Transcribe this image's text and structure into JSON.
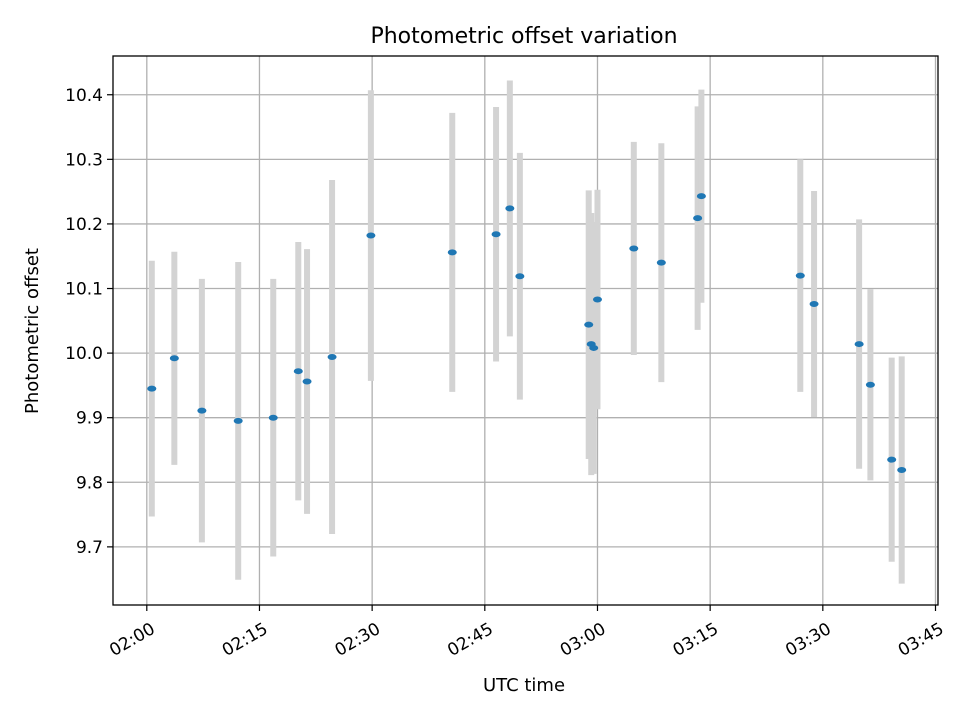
{
  "chart_data": {
    "type": "scatter",
    "title": "Photometric offset variation",
    "xlabel": "UTC time",
    "ylabel": "Photometric offset",
    "x_ticks": [
      "02:00",
      "02:15",
      "02:30",
      "02:45",
      "03:00",
      "03:15",
      "03:30",
      "03:45"
    ],
    "y_ticks": [
      "9.7",
      "9.8",
      "9.9",
      "10.0",
      "10.1",
      "10.2",
      "10.3",
      "10.4"
    ],
    "xlim": [
      "01:55:30",
      "03:45:20"
    ],
    "ylim": [
      9.61,
      10.46
    ],
    "grid": true,
    "colors": {
      "point": "#1f77b4",
      "errorbar": "#d3d3d3",
      "grid": "#b0b0b0"
    },
    "points": [
      {
        "x": "02:00:40",
        "y": 9.945,
        "err": 0.198
      },
      {
        "x": "02:03:40",
        "y": 9.992,
        "err": 0.165
      },
      {
        "x": "02:07:20",
        "y": 9.911,
        "err": 0.204
      },
      {
        "x": "02:12:10",
        "y": 9.895,
        "err": 0.246
      },
      {
        "x": "02:16:50",
        "y": 9.9,
        "err": 0.215
      },
      {
        "x": "02:20:10",
        "y": 9.972,
        "err": 0.2
      },
      {
        "x": "02:21:20",
        "y": 9.956,
        "err": 0.205
      },
      {
        "x": "02:24:40",
        "y": 9.994,
        "err": 0.274
      },
      {
        "x": "02:29:50",
        "y": 10.182,
        "err": 0.225
      },
      {
        "x": "02:40:40",
        "y": 10.156,
        "err": 0.216
      },
      {
        "x": "02:46:30",
        "y": 10.184,
        "err": 0.197
      },
      {
        "x": "02:48:20",
        "y": 10.224,
        "err": 0.198
      },
      {
        "x": "02:49:40",
        "y": 10.119,
        "err": 0.191
      },
      {
        "x": "02:58:50",
        "y": 10.044,
        "err": 0.208
      },
      {
        "x": "02:59:10",
        "y": 10.014,
        "err": 0.203
      },
      {
        "x": "02:59:30",
        "y": 10.008,
        "err": 0.195
      },
      {
        "x": "03:00:00",
        "y": 10.083,
        "err": 0.17
      },
      {
        "x": "03:04:50",
        "y": 10.162,
        "err": 0.165
      },
      {
        "x": "03:08:30",
        "y": 10.14,
        "err": 0.185
      },
      {
        "x": "03:13:20",
        "y": 10.209,
        "err": 0.173
      },
      {
        "x": "03:13:50",
        "y": 10.243,
        "err": 0.165
      },
      {
        "x": "03:27:00",
        "y": 10.12,
        "err": 0.18
      },
      {
        "x": "03:28:50",
        "y": 10.076,
        "err": 0.175
      },
      {
        "x": "03:34:50",
        "y": 10.014,
        "err": 0.193
      },
      {
        "x": "03:36:20",
        "y": 9.951,
        "err": 0.148
      },
      {
        "x": "03:39:10",
        "y": 9.835,
        "err": 0.158
      },
      {
        "x": "03:40:30",
        "y": 9.819,
        "err": 0.176
      }
    ]
  }
}
